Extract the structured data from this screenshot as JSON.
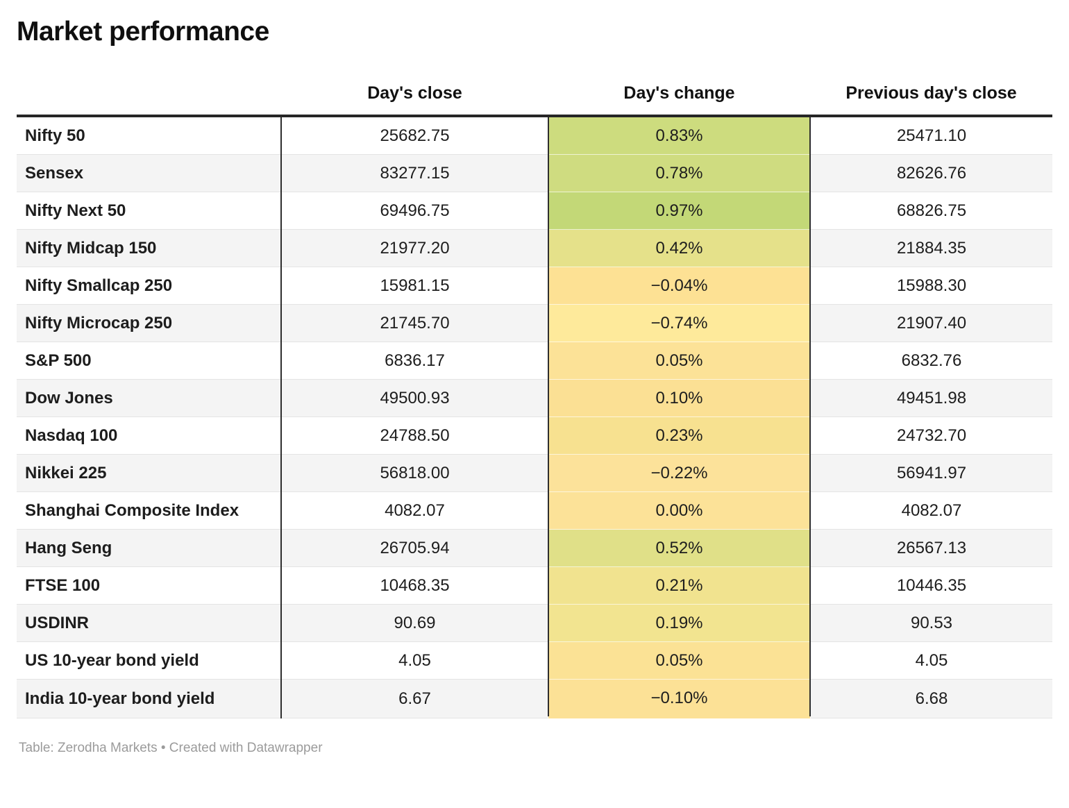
{
  "chart_data": {
    "type": "table",
    "title": "Market performance",
    "columns": [
      "Day's close",
      "Day's change",
      "Previous day's close"
    ],
    "legend_note": "Day's change cells are shaded on a green (positive) to yellow/orange (negative) scale",
    "rows": [
      {
        "label": "Nifty 50",
        "close": 25682.75,
        "close_text": "25682.75",
        "change_pct": 0.83,
        "change_text": "0.83%",
        "prev": 25471.1,
        "prev_text": "25471.10",
        "change_color": "#cddc7e"
      },
      {
        "label": "Sensex",
        "close": 83277.15,
        "close_text": "83277.15",
        "change_pct": 0.78,
        "change_text": "0.78%",
        "prev": 82626.76,
        "prev_text": "82626.76",
        "change_color": "#cfdc80"
      },
      {
        "label": "Nifty Next 50",
        "close": 69496.75,
        "close_text": "69496.75",
        "change_pct": 0.97,
        "change_text": "0.97%",
        "prev": 68826.75,
        "prev_text": "68826.75",
        "change_color": "#c3d877"
      },
      {
        "label": "Nifty Midcap 150",
        "close": 21977.2,
        "close_text": "21977.20",
        "change_pct": 0.42,
        "change_text": "0.42%",
        "prev": 21884.35,
        "prev_text": "21884.35",
        "change_color": "#e5e18a"
      },
      {
        "label": "Nifty Smallcap 250",
        "close": 15981.15,
        "close_text": "15981.15",
        "change_pct": -0.04,
        "change_text": "−0.04%",
        "prev": 15988.3,
        "prev_text": "15988.30",
        "change_color": "#fde194"
      },
      {
        "label": "Nifty Microcap 250",
        "close": 21745.7,
        "close_text": "21745.70",
        "change_pct": -0.74,
        "change_text": "−0.74%",
        "prev": 21907.4,
        "prev_text": "21907.40",
        "change_color": "#feea9b"
      },
      {
        "label": "S&P 500",
        "close": 6836.17,
        "close_text": "6836.17",
        "change_pct": 0.05,
        "change_text": "0.05%",
        "prev": 6832.76,
        "prev_text": "6832.76",
        "change_color": "#fce297"
      },
      {
        "label": "Dow Jones",
        "close": 49500.93,
        "close_text": "49500.93",
        "change_pct": 0.1,
        "change_text": "0.10%",
        "prev": 49451.98,
        "prev_text": "49451.98",
        "change_color": "#fbe094"
      },
      {
        "label": "Nasdaq 100",
        "close": 24788.5,
        "close_text": "24788.50",
        "change_pct": 0.23,
        "change_text": "0.23%",
        "prev": 24732.7,
        "prev_text": "24732.70",
        "change_color": "#f7e190"
      },
      {
        "label": "Nikkei 225",
        "close": 56818.0,
        "close_text": "56818.00",
        "change_pct": -0.22,
        "change_text": "−0.22%",
        "prev": 56941.97,
        "prev_text": "56941.97",
        "change_color": "#fce29a"
      },
      {
        "label": "Shanghai Composite Index",
        "close": 4082.07,
        "close_text": "4082.07",
        "change_pct": 0.0,
        "change_text": "0.00%",
        "prev": 4082.07,
        "prev_text": "4082.07",
        "change_color": "#fce298"
      },
      {
        "label": "Hang Seng",
        "close": 26705.94,
        "close_text": "26705.94",
        "change_pct": 0.52,
        "change_text": "0.52%",
        "prev": 26567.13,
        "prev_text": "26567.13",
        "change_color": "#e0e088"
      },
      {
        "label": "FTSE 100",
        "close": 10468.35,
        "close_text": "10468.35",
        "change_pct": 0.21,
        "change_text": "0.21%",
        "prev": 10446.35,
        "prev_text": "10446.35",
        "change_color": "#f1e38f"
      },
      {
        "label": "USDINR",
        "close": 90.69,
        "close_text": "90.69",
        "change_pct": 0.19,
        "change_text": "0.19%",
        "prev": 90.53,
        "prev_text": "90.53",
        "change_color": "#f2e490"
      },
      {
        "label": "US 10-year bond yield",
        "close": 4.05,
        "close_text": "4.05",
        "change_pct": 0.05,
        "change_text": "0.05%",
        "prev": 4.05,
        "prev_text": "4.05",
        "change_color": "#fbe295"
      },
      {
        "label": "India 10-year bond yield",
        "close": 6.67,
        "close_text": "6.67",
        "change_pct": -0.1,
        "change_text": "−0.10%",
        "prev": 6.68,
        "prev_text": "6.68",
        "change_color": "#fce196"
      }
    ],
    "footer": "Table: Zerodha Markets • Created with Datawrapper",
    "colors": {
      "positive_high": "#c3d877",
      "neutral": "#fce298",
      "negative": "#fde194",
      "stripe": "#f4f4f4",
      "rule_dark": "#2e2e2e",
      "footer_text": "#9b9b9b"
    }
  }
}
